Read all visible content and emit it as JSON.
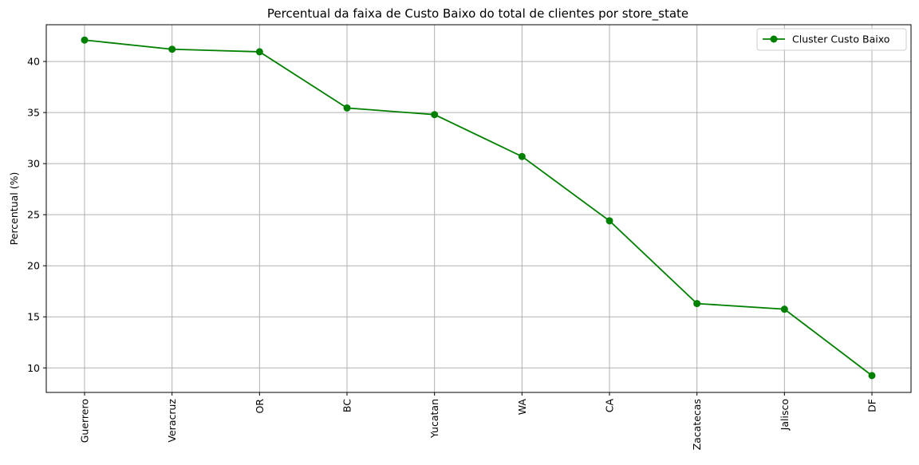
{
  "chart_data": {
    "type": "line",
    "title": "Percentual da faixa de Custo Baixo do total de clientes por store_state",
    "xlabel": "",
    "ylabel": "Percentual (%)",
    "categories": [
      "Guerrero",
      "Veracruz",
      "OR",
      "BC",
      "Yucatan",
      "WA",
      "CA",
      "Zacatecas",
      "Jalisco",
      "DF"
    ],
    "series": [
      {
        "name": "Cluster Custo Baixo",
        "color": "#008000",
        "marker": "circle",
        "values": [
          42.1,
          41.2,
          40.95,
          35.45,
          34.8,
          30.7,
          24.4,
          16.3,
          15.75,
          9.25
        ]
      }
    ],
    "ylim": [
      7.6,
      43.6
    ],
    "yticks": [
      10,
      15,
      20,
      25,
      30,
      35,
      40
    ],
    "grid": true,
    "legend_position": "top-right"
  }
}
